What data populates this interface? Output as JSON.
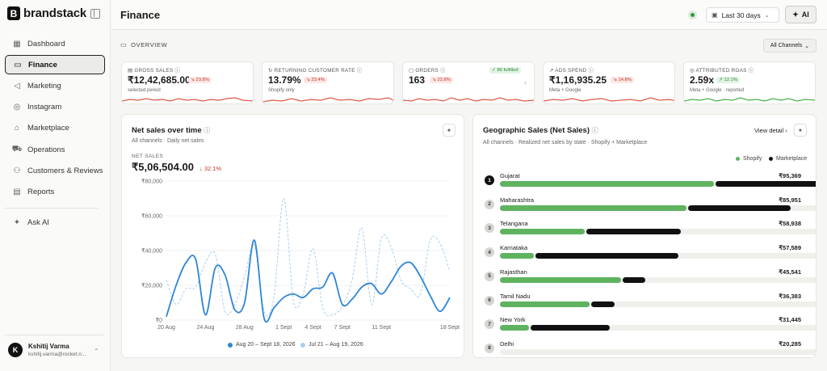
{
  "brand": {
    "name": "brandstack",
    "mark": "B"
  },
  "sidebar": {
    "items": [
      {
        "label": "Dashboard",
        "icon": "grid-icon"
      },
      {
        "label": "Finance",
        "icon": "wallet-icon"
      },
      {
        "label": "Marketing",
        "icon": "megaphone-icon"
      },
      {
        "label": "Instagram",
        "icon": "instagram-icon"
      },
      {
        "label": "Marketplace",
        "icon": "store-icon"
      },
      {
        "label": "Operations",
        "icon": "truck-icon"
      },
      {
        "label": "Customers & Reviews",
        "icon": "users-icon"
      },
      {
        "label": "Reports",
        "icon": "document-icon"
      }
    ],
    "ask_ai": "Ask AI"
  },
  "user": {
    "initial": "K",
    "name": "Kshitij Varma",
    "email": "kshitij.varma@rocket.n..."
  },
  "header": {
    "title": "Finance",
    "date_range": "Last 30 days",
    "ai_label": "AI"
  },
  "overview": {
    "label": "OVERVIEW",
    "channel_filter": "All Channels"
  },
  "kpis": [
    {
      "label": "GROSS SALES",
      "value": "₹12,42,685.00",
      "badge": "23.8%",
      "badge_type": "neg",
      "sub": "selected period",
      "spark": "red"
    },
    {
      "label": "RETURNING CUSTOMER RATE",
      "value": "13.79%",
      "badge": "23.4%",
      "badge_type": "neg",
      "sub": "Shopify only",
      "spark": "red"
    },
    {
      "label": "ORDERS",
      "value": "163",
      "badge": "22.8%",
      "badge_type": "neg",
      "sub": "",
      "extra": "86 fulfilled",
      "spark": "red"
    },
    {
      "label": "ADS SPEND",
      "value": "₹1,16,935.25",
      "badge": "14.8%",
      "badge_type": "neg",
      "sub": "Meta + Google",
      "spark": "red"
    },
    {
      "label": "ATTRIBUTED ROAS",
      "value": "2.59x",
      "badge": "12.1%",
      "badge_type": "pos",
      "sub": "Meta + Google · reported",
      "spark": "green"
    }
  ],
  "net_sales": {
    "title": "Net sales over time",
    "subtitle": "All channels · Daily net sales",
    "metric_label": "NET SALES",
    "total": "₹5,06,504.00",
    "change": "↓ 32.1%",
    "legend_current": "Aug 20 – Sept 18, 2026",
    "legend_previous": "Jul 21 – Aug 19, 2026"
  },
  "chart_data": {
    "type": "line",
    "ylim": [
      0,
      80000
    ],
    "yticks": [
      "₹80,000",
      "₹60,000",
      "₹40,000",
      "₹20,000",
      "₹0"
    ],
    "xticks": [
      "20 Aug",
      "24 Aug",
      "28 Aug",
      "1 Sept",
      "4 Sept",
      "7 Sept",
      "11 Sept",
      "18 Sept"
    ],
    "xtick_index": [
      0,
      4,
      8,
      12,
      15,
      18,
      22,
      29
    ],
    "colors": {
      "current": "#2f86d6",
      "previous": "#a9cdf0"
    },
    "series": [
      {
        "name": "Aug 20 – Sept 18, 2026",
        "values": [
          2000,
          20000,
          33000,
          35000,
          3000,
          30000,
          26000,
          6000,
          10000,
          46000,
          1000,
          7000,
          13000,
          15000,
          13000,
          18000,
          19000,
          27000,
          9000,
          12000,
          19000,
          21000,
          15000,
          22000,
          31000,
          33000,
          25000,
          14000,
          5000,
          13000
        ]
      },
      {
        "name": "Jul 21 – Aug 19, 2026",
        "values": [
          23000,
          9000,
          18000,
          19000,
          33000,
          38000,
          5000,
          9000,
          25000,
          43000,
          5000,
          13000,
          70000,
          11000,
          15000,
          41000,
          7000,
          3000,
          8000,
          23000,
          53000,
          9000,
          47000,
          42000,
          23000,
          18000,
          15000,
          46000,
          44000,
          28000
        ]
      }
    ]
  },
  "geo": {
    "title": "Geographic Sales (Net Sales)",
    "subtitle": "All channels · Realized net sales by state · Shopify + Marketplace",
    "view_detail": "View detail",
    "legend_shopify": "Shopify",
    "legend_marketplace": "Marketplace",
    "colors": {
      "shopify": "#5fb35f",
      "marketplace": "#111111"
    },
    "rows": [
      {
        "rank": "1",
        "name": "Gujarat",
        "value": "₹95,369",
        "shopify": 0.662,
        "marketplace": 0.338
      },
      {
        "rank": "2",
        "name": "Maharashtra",
        "value": "₹85,951",
        "shopify": 0.578,
        "marketplace": 0.317
      },
      {
        "rank": "3",
        "name": "Telangana",
        "value": "₹58,938",
        "shopify": 0.262,
        "marketplace": 0.292
      },
      {
        "rank": "4",
        "name": "Karnataka",
        "value": "₹57,589",
        "shopify": 0.105,
        "marketplace": 0.443
      },
      {
        "rank": "5",
        "name": "Rajasthan",
        "value": "₹45,541",
        "shopify": 0.376,
        "marketplace": 0.07
      },
      {
        "rank": "6",
        "name": "Tamil Nadu",
        "value": "₹36,383",
        "shopify": 0.278,
        "marketplace": 0.072
      },
      {
        "rank": "7",
        "name": "New York",
        "value": "₹31,445",
        "shopify": 0.091,
        "marketplace": 0.245
      },
      {
        "rank": "8",
        "name": "Delhi",
        "value": "₹20,285",
        "shopify": 0.0,
        "marketplace": 0.0
      }
    ]
  }
}
